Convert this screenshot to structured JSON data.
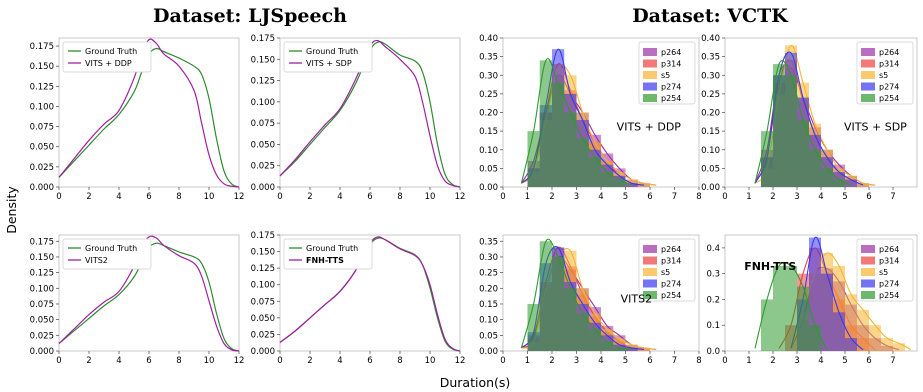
{
  "titles": {
    "left": "Dataset: LJSpeech",
    "right": "Dataset: VCTK"
  },
  "ylabel": "Density",
  "xlabel": "Duration(s)",
  "colors": {
    "ground_truth": "#2e8b2e",
    "model": "#a020a0",
    "p264": "#9b30a8",
    "p314": "#ee4040",
    "s5": "#f6b530",
    "p274": "#3838ee",
    "p254": "#2e9a2e"
  },
  "chart_data": [
    {
      "type": "line",
      "panel": "LJSpeech top-left",
      "xlim": [
        0,
        12
      ],
      "ylim": [
        0,
        0.185
      ],
      "xticks": [
        0,
        2,
        4,
        6,
        8,
        10,
        12
      ],
      "yticks": [
        0,
        0.025,
        0.05,
        0.075,
        0.1,
        0.125,
        0.15,
        0.175
      ],
      "legend": [
        "Ground Truth",
        "VITS + DDP"
      ],
      "series": [
        {
          "name": "Ground Truth",
          "x": [
            0,
            1,
            2,
            3,
            4,
            5,
            5.5,
            6,
            6.5,
            7,
            8,
            9,
            9.5,
            10,
            10.5,
            11,
            11.5,
            12
          ],
          "y": [
            0.012,
            0.032,
            0.052,
            0.072,
            0.09,
            0.118,
            0.142,
            0.165,
            0.172,
            0.168,
            0.16,
            0.15,
            0.14,
            0.11,
            0.06,
            0.02,
            0.004,
            0
          ]
        },
        {
          "name": "VITS + DDP",
          "x": [
            0,
            1,
            2,
            3,
            4,
            5,
            5.5,
            6,
            6.5,
            7,
            8,
            9,
            9.5,
            10,
            10.5,
            11,
            11.5,
            12
          ],
          "y": [
            0.012,
            0.035,
            0.058,
            0.078,
            0.095,
            0.135,
            0.165,
            0.183,
            0.178,
            0.165,
            0.15,
            0.12,
            0.08,
            0.04,
            0.015,
            0.004,
            0.001,
            0
          ]
        }
      ]
    },
    {
      "type": "line",
      "panel": "LJSpeech top-right",
      "xlim": [
        0,
        12
      ],
      "ylim": [
        0,
        0.175
      ],
      "xticks": [
        0,
        2,
        4,
        6,
        8,
        10,
        12
      ],
      "yticks": [
        0,
        0.025,
        0.05,
        0.075,
        0.1,
        0.125,
        0.15,
        0.175
      ],
      "legend": [
        "Ground Truth",
        "VITS + SDP"
      ],
      "series": [
        {
          "name": "Ground Truth",
          "x": [
            0,
            1,
            2,
            3,
            4,
            5,
            6,
            6.5,
            7,
            8,
            9,
            9.5,
            10,
            10.5,
            11,
            11.5,
            12
          ],
          "y": [
            0.013,
            0.03,
            0.05,
            0.07,
            0.09,
            0.12,
            0.16,
            0.17,
            0.168,
            0.155,
            0.148,
            0.135,
            0.1,
            0.05,
            0.015,
            0.003,
            0
          ]
        },
        {
          "name": "VITS + SDP",
          "x": [
            0,
            1,
            2,
            3,
            4,
            5,
            6,
            6.5,
            7,
            8,
            9,
            9.5,
            10,
            10.5,
            11,
            11.5,
            12
          ],
          "y": [
            0.013,
            0.032,
            0.053,
            0.073,
            0.092,
            0.125,
            0.165,
            0.172,
            0.165,
            0.15,
            0.13,
            0.1,
            0.06,
            0.025,
            0.007,
            0.002,
            0
          ]
        }
      ]
    },
    {
      "type": "line",
      "panel": "LJSpeech bottom-left",
      "xlim": [
        0,
        12
      ],
      "ylim": [
        0,
        0.185
      ],
      "xticks": [
        0,
        2,
        4,
        6,
        8,
        10,
        12
      ],
      "yticks": [
        0,
        0.025,
        0.05,
        0.075,
        0.1,
        0.125,
        0.15,
        0.175
      ],
      "legend": [
        "Ground Truth",
        "VITS2"
      ],
      "series": [
        {
          "name": "Ground Truth",
          "x": [
            0,
            1,
            2,
            3,
            4,
            5,
            5.5,
            6,
            6.5,
            7,
            8,
            9,
            9.5,
            10,
            10.5,
            11,
            11.5,
            12
          ],
          "y": [
            0.012,
            0.032,
            0.052,
            0.072,
            0.09,
            0.118,
            0.142,
            0.165,
            0.172,
            0.168,
            0.158,
            0.15,
            0.14,
            0.11,
            0.06,
            0.02,
            0.004,
            0
          ]
        },
        {
          "name": "VITS2",
          "x": [
            0,
            1,
            2,
            3,
            4,
            5,
            5.5,
            6,
            6.5,
            7,
            8,
            9,
            9.5,
            10,
            10.5,
            11,
            11.5,
            12
          ],
          "y": [
            0.012,
            0.035,
            0.058,
            0.078,
            0.095,
            0.135,
            0.165,
            0.182,
            0.18,
            0.168,
            0.152,
            0.14,
            0.12,
            0.08,
            0.04,
            0.012,
            0.002,
            0
          ]
        }
      ]
    },
    {
      "type": "line",
      "panel": "LJSpeech bottom-right",
      "xlim": [
        0,
        12
      ],
      "ylim": [
        0,
        0.175
      ],
      "xticks": [
        0,
        2,
        4,
        6,
        8,
        10,
        12
      ],
      "yticks": [
        0,
        0.025,
        0.05,
        0.075,
        0.1,
        0.125,
        0.15,
        0.175
      ],
      "legend": [
        "Ground Truth",
        "FNH-TTS"
      ],
      "series": [
        {
          "name": "Ground Truth",
          "x": [
            0,
            1,
            2,
            3,
            4,
            5,
            6,
            6.5,
            7,
            8,
            9,
            9.5,
            10,
            10.5,
            11,
            11.5,
            12
          ],
          "y": [
            0.013,
            0.03,
            0.05,
            0.07,
            0.09,
            0.12,
            0.16,
            0.17,
            0.168,
            0.155,
            0.145,
            0.13,
            0.095,
            0.05,
            0.015,
            0.003,
            0
          ]
        },
        {
          "name": "FNH-TTS",
          "x": [
            0,
            1,
            2,
            3,
            4,
            5,
            6,
            6.5,
            7,
            8,
            9,
            9.5,
            10,
            10.5,
            11,
            11.5,
            12
          ],
          "y": [
            0.013,
            0.03,
            0.05,
            0.07,
            0.09,
            0.12,
            0.162,
            0.172,
            0.168,
            0.154,
            0.144,
            0.13,
            0.1,
            0.055,
            0.018,
            0.004,
            0
          ]
        }
      ]
    },
    {
      "type": "bar",
      "panel": "VCTK top-left",
      "annotation": "VITS + DDP",
      "xlim": [
        0,
        8
      ],
      "ylim": [
        0,
        0.4
      ],
      "xticks": [
        0,
        1,
        2,
        3,
        4,
        5,
        6,
        7,
        8
      ],
      "yticks": [
        0,
        0.05,
        0.1,
        0.15,
        0.2,
        0.25,
        0.3,
        0.35,
        0.4
      ],
      "legend": [
        "p264",
        "p314",
        "s5",
        "p274",
        "p254"
      ],
      "series": [
        {
          "name": "p264",
          "x": [
            1.25,
            1.75,
            2.25,
            2.75,
            3.25,
            3.75,
            4.25,
            4.75,
            5.25,
            5.75
          ],
          "values": [
            0.07,
            0.2,
            0.3,
            0.25,
            0.2,
            0.14,
            0.09,
            0.05,
            0.02,
            0.01
          ]
        },
        {
          "name": "p314",
          "x": [
            1.25,
            1.75,
            2.25,
            2.75,
            3.25,
            3.75,
            4.25,
            4.75,
            5.25
          ],
          "values": [
            0.05,
            0.2,
            0.33,
            0.26,
            0.18,
            0.12,
            0.07,
            0.03,
            0.01
          ]
        },
        {
          "name": "s5",
          "x": [
            1.25,
            1.75,
            2.25,
            2.75,
            3.25,
            3.75,
            4.25,
            4.75,
            5.25,
            5.75
          ],
          "values": [
            0.04,
            0.18,
            0.32,
            0.3,
            0.2,
            0.12,
            0.07,
            0.04,
            0.02,
            0.01
          ]
        },
        {
          "name": "p274",
          "x": [
            1.25,
            1.75,
            2.25,
            2.75,
            3.25,
            3.75,
            4.25,
            4.75,
            5.25
          ],
          "values": [
            0.05,
            0.22,
            0.37,
            0.25,
            0.18,
            0.1,
            0.06,
            0.03,
            0.01
          ]
        },
        {
          "name": "p254",
          "x": [
            1.25,
            1.75,
            2.25,
            2.75,
            3.25,
            3.75,
            4.25,
            4.75
          ],
          "values": [
            0.15,
            0.34,
            0.28,
            0.2,
            0.13,
            0.08,
            0.04,
            0.02
          ]
        }
      ]
    },
    {
      "type": "bar",
      "panel": "VCTK top-right",
      "annotation": "VITS + SDP",
      "xlim": [
        0,
        8
      ],
      "ylim": [
        0,
        0.4
      ],
      "xticks": [
        0,
        1,
        2,
        3,
        4,
        5,
        6,
        7
      ],
      "yticks": [
        0,
        0.05,
        0.1,
        0.15,
        0.2,
        0.25,
        0.3,
        0.35,
        0.4
      ],
      "legend": [
        "p264",
        "p314",
        "s5",
        "p274",
        "p254"
      ],
      "series": [
        {
          "name": "p264",
          "x": [
            1.75,
            2.25,
            2.75,
            3.25,
            3.75,
            4.25,
            4.75,
            5.25,
            5.75
          ],
          "values": [
            0.1,
            0.3,
            0.32,
            0.24,
            0.16,
            0.1,
            0.06,
            0.03,
            0.01
          ]
        },
        {
          "name": "p314",
          "x": [
            1.75,
            2.25,
            2.75,
            3.25,
            3.75,
            4.25,
            4.75,
            5.25
          ],
          "values": [
            0.08,
            0.28,
            0.34,
            0.23,
            0.14,
            0.08,
            0.04,
            0.02
          ]
        },
        {
          "name": "s5",
          "x": [
            1.75,
            2.25,
            2.75,
            3.25,
            3.75,
            4.25,
            4.75,
            5.25,
            5.75
          ],
          "values": [
            0.05,
            0.25,
            0.38,
            0.28,
            0.17,
            0.1,
            0.05,
            0.03,
            0.01
          ]
        },
        {
          "name": "p274",
          "x": [
            1.75,
            2.25,
            2.75,
            3.25,
            3.75,
            4.25,
            4.75,
            5.25
          ],
          "values": [
            0.08,
            0.3,
            0.36,
            0.24,
            0.14,
            0.08,
            0.04,
            0.02
          ]
        },
        {
          "name": "p254",
          "x": [
            1.75,
            2.25,
            2.75,
            3.25,
            3.75,
            4.25,
            4.75
          ],
          "values": [
            0.15,
            0.33,
            0.3,
            0.18,
            0.1,
            0.05,
            0.02
          ]
        }
      ]
    },
    {
      "type": "bar",
      "panel": "VCTK bottom-left",
      "annotation": "VITS2",
      "xlim": [
        0,
        8
      ],
      "ylim": [
        0,
        0.37
      ],
      "xticks": [
        0,
        1,
        2,
        3,
        4,
        5,
        6,
        7,
        8
      ],
      "yticks": [
        0,
        0.05,
        0.1,
        0.15,
        0.2,
        0.25,
        0.3,
        0.35
      ],
      "legend": [
        "p264",
        "p314",
        "s5",
        "p274",
        "p254"
      ],
      "series": [
        {
          "name": "p264",
          "x": [
            1.25,
            1.75,
            2.25,
            2.75,
            3.25,
            3.75,
            4.25,
            4.75,
            5.25,
            5.75
          ],
          "values": [
            0.05,
            0.2,
            0.3,
            0.26,
            0.2,
            0.14,
            0.08,
            0.05,
            0.02,
            0.01
          ]
        },
        {
          "name": "p314",
          "x": [
            1.25,
            1.75,
            2.25,
            2.75,
            3.25,
            3.75,
            4.25,
            4.75,
            5.25
          ],
          "values": [
            0.04,
            0.22,
            0.33,
            0.27,
            0.18,
            0.11,
            0.06,
            0.03,
            0.01
          ]
        },
        {
          "name": "s5",
          "x": [
            1.25,
            1.75,
            2.25,
            2.75,
            3.25,
            3.75,
            4.25,
            4.75,
            5.25,
            5.75
          ],
          "values": [
            0.03,
            0.2,
            0.3,
            0.32,
            0.2,
            0.12,
            0.07,
            0.04,
            0.02,
            0.01
          ]
        },
        {
          "name": "p274",
          "x": [
            1.25,
            1.75,
            2.25,
            2.75,
            3.25,
            3.75,
            4.25,
            4.75,
            5.25
          ],
          "values": [
            0.06,
            0.28,
            0.33,
            0.22,
            0.15,
            0.09,
            0.05,
            0.02,
            0.01
          ]
        },
        {
          "name": "p254",
          "x": [
            1.25,
            1.75,
            2.25,
            2.75,
            3.25,
            3.75,
            4.25,
            4.75
          ],
          "values": [
            0.15,
            0.35,
            0.3,
            0.2,
            0.12,
            0.07,
            0.03,
            0.01
          ]
        }
      ]
    },
    {
      "type": "bar",
      "panel": "VCTK bottom-right",
      "annotation": "FNH-TTS",
      "xlim": [
        0,
        8
      ],
      "ylim": [
        0,
        0.45
      ],
      "xticks": [
        0,
        1,
        2,
        3,
        4,
        5,
        6,
        7
      ],
      "yticks": [
        0,
        0.1,
        0.2,
        0.3,
        0.4
      ],
      "legend": [
        "p264",
        "p314",
        "s5",
        "p274",
        "p254"
      ],
      "series": [
        {
          "name": "p264",
          "x": [
            3.25,
            3.75,
            4.25,
            4.75,
            5.25,
            5.75,
            6.25,
            6.75
          ],
          "values": [
            0.12,
            0.3,
            0.32,
            0.27,
            0.18,
            0.1,
            0.05,
            0.02
          ]
        },
        {
          "name": "p314",
          "x": [
            2.75,
            3.25,
            3.75,
            4.25,
            4.75,
            5.25,
            5.75
          ],
          "values": [
            0.1,
            0.3,
            0.4,
            0.3,
            0.2,
            0.1,
            0.05
          ]
        },
        {
          "name": "s5",
          "x": [
            3.25,
            3.75,
            4.25,
            4.75,
            5.25,
            5.75,
            6.25,
            6.75,
            7.25
          ],
          "values": [
            0.15,
            0.3,
            0.38,
            0.33,
            0.22,
            0.16,
            0.1,
            0.05,
            0.03
          ]
        },
        {
          "name": "p274",
          "x": [
            3.25,
            3.75,
            4.25,
            4.75,
            5.25
          ],
          "values": [
            0.2,
            0.44,
            0.3,
            0.15,
            0.05
          ]
        },
        {
          "name": "p254",
          "x": [
            1.75,
            2.25,
            2.75,
            3.25,
            3.75
          ],
          "values": [
            0.2,
            0.33,
            0.33,
            0.25,
            0.1
          ]
        }
      ]
    }
  ]
}
